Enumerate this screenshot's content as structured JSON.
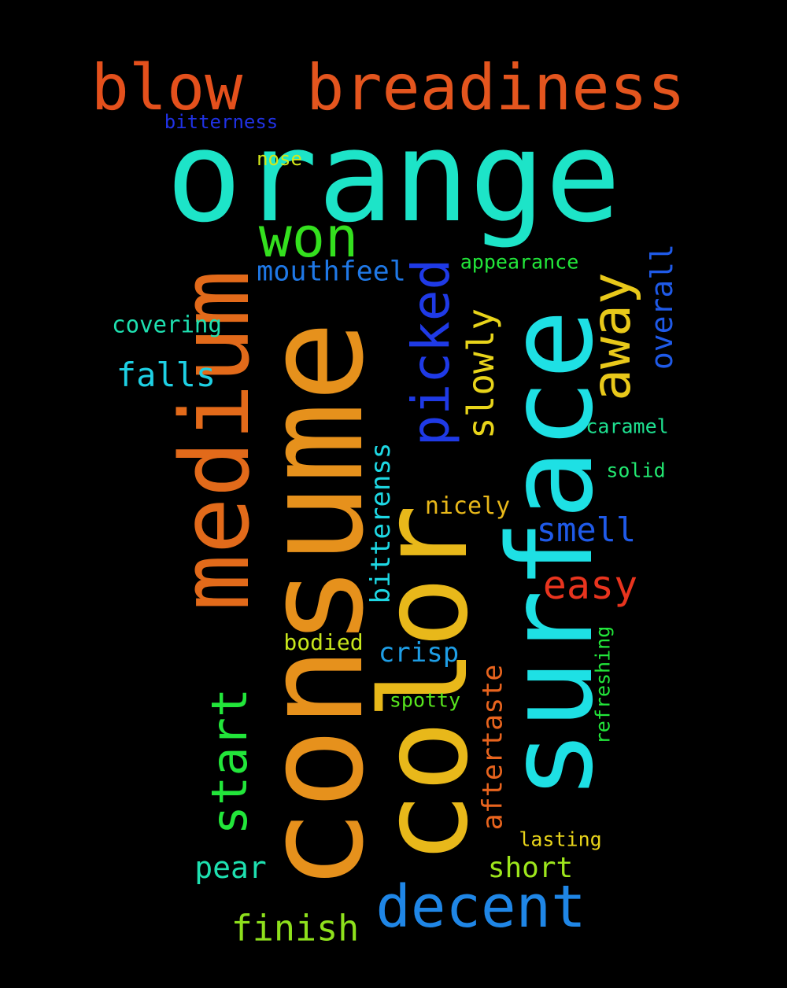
{
  "words": [
    {
      "text": "orange",
      "color": "#1de4c8"
    },
    {
      "text": "consume",
      "color": "#e6911c"
    },
    {
      "text": "surface",
      "color": "#1ee0e4"
    },
    {
      "text": "color",
      "color": "#e8b81a"
    },
    {
      "text": "medium",
      "color": "#e26a1a"
    },
    {
      "text": "breadiness",
      "color": "#e4551e"
    },
    {
      "text": "blow",
      "color": "#e4501c"
    },
    {
      "text": "decent",
      "color": "#1f86e6"
    },
    {
      "text": "picked",
      "color": "#1f3ae6"
    },
    {
      "text": "won",
      "color": "#34e01e"
    },
    {
      "text": "away",
      "color": "#e8c81a"
    },
    {
      "text": "start",
      "color": "#22e63a"
    },
    {
      "text": "slowly",
      "color": "#e8d41a"
    },
    {
      "text": "overall",
      "color": "#1f5ae8"
    },
    {
      "text": "easy",
      "color": "#e8341e"
    },
    {
      "text": "smell",
      "color": "#1f5ae8"
    },
    {
      "text": "falls",
      "color": "#1ed0e4"
    },
    {
      "text": "mouthfeel",
      "color": "#1f78e6"
    },
    {
      "text": "finish",
      "color": "#8ee01c"
    },
    {
      "text": "bitterenss",
      "color": "#1ed8e4"
    },
    {
      "text": "aftertaste",
      "color": "#e8641e"
    },
    {
      "text": "crisp",
      "color": "#1e9ee6"
    },
    {
      "text": "pear",
      "color": "#1ee0b0"
    },
    {
      "text": "short",
      "color": "#9ee61c"
    },
    {
      "text": "nicely",
      "color": "#e8b81a"
    },
    {
      "text": "covering",
      "color": "#1ee0b0"
    },
    {
      "text": "bodied",
      "color": "#c8e61c"
    },
    {
      "text": "appearance",
      "color": "#22e63a"
    },
    {
      "text": "refreshing",
      "color": "#22e63a"
    },
    {
      "text": "caramel",
      "color": "#1ee090"
    },
    {
      "text": "solid",
      "color": "#22e670"
    },
    {
      "text": "spotty",
      "color": "#58e61e"
    },
    {
      "text": "lasting",
      "color": "#e8d41a"
    },
    {
      "text": "bitterness",
      "color": "#2032e6"
    },
    {
      "text": "nose",
      "color": "#d4e81a"
    }
  ]
}
